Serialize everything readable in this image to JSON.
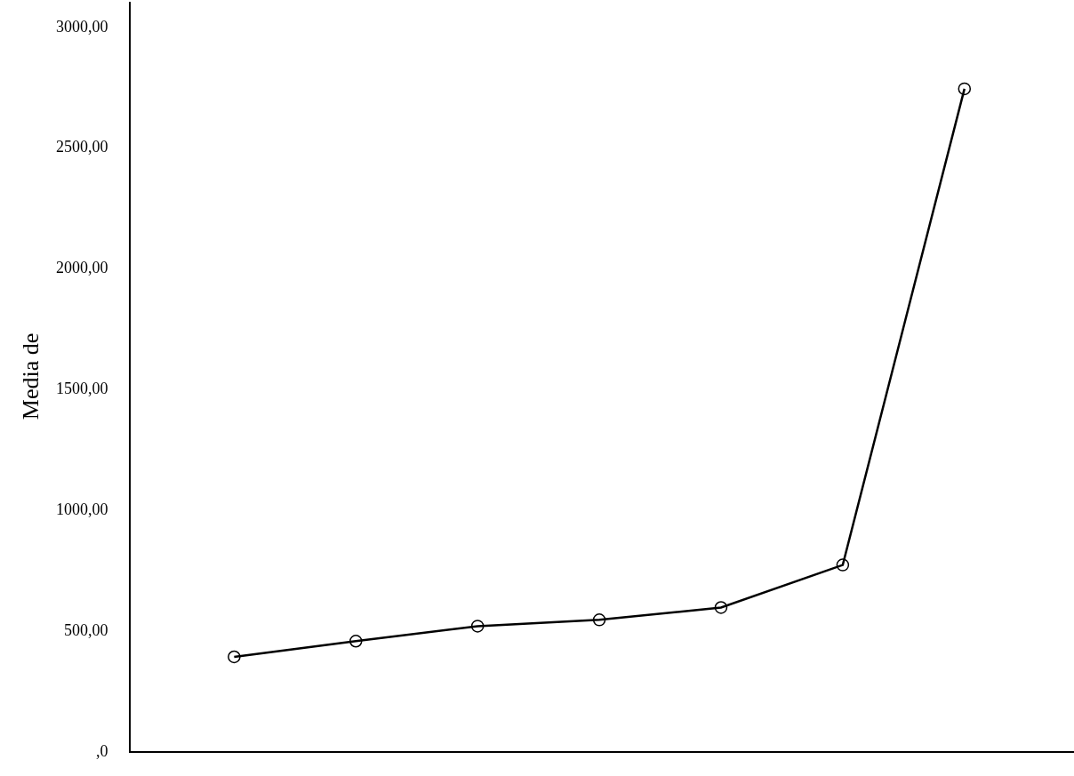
{
  "chart_data": {
    "type": "line",
    "ylabel": "Media de",
    "categories": [
      null,
      null,
      null,
      null,
      null,
      null,
      null
    ],
    "series": [
      {
        "color": "#000000",
        "values": [
          390,
          455,
          517,
          543,
          594,
          770,
          2740
        ]
      }
    ],
    "ylim": [
      0,
      3100
    ],
    "yticks": [
      {
        "value": 0,
        "label": ",0"
      },
      {
        "value": 500,
        "label": "500,00"
      },
      {
        "value": 1000,
        "label": "1000,00"
      },
      {
        "value": 1500,
        "label": "1500,00"
      },
      {
        "value": 2000,
        "label": "2000,00"
      },
      {
        "value": 2500,
        "label": "2500,00"
      },
      {
        "value": 3000,
        "label": "3000,00"
      }
    ],
    "tick_labels": "y",
    "marker": "circle",
    "line_style": "solid"
  }
}
